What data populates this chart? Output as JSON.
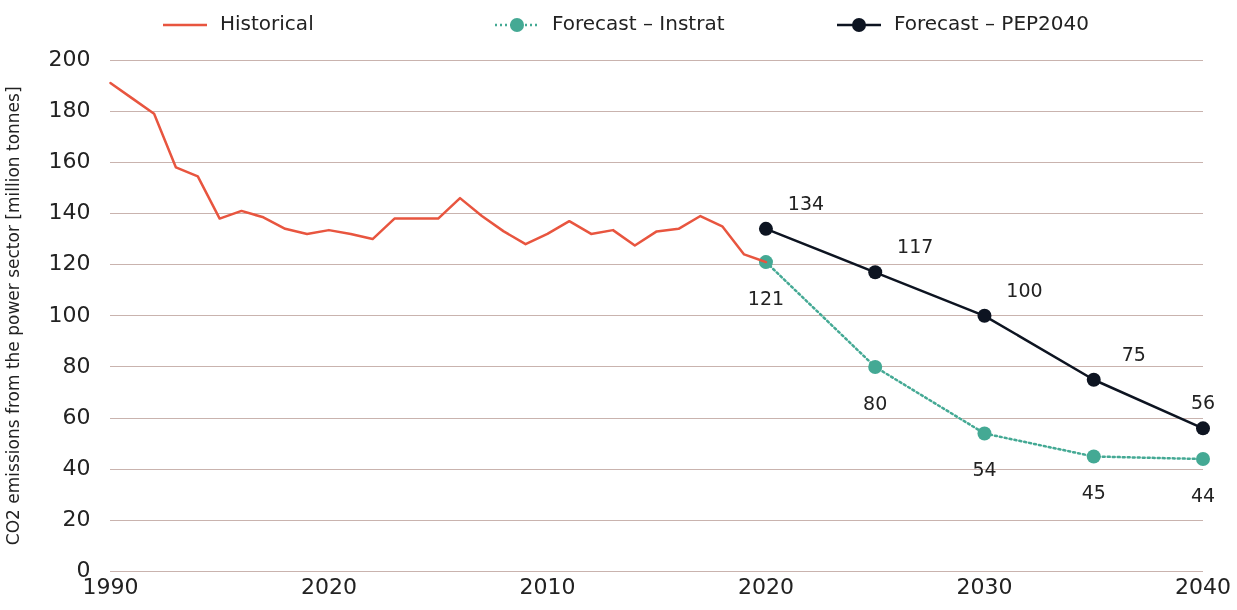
{
  "chart_data": {
    "type": "line",
    "ylabel": "CO2 emissions from the power sector [million tonnes]",
    "categories": [
      "1990",
      null,
      null,
      null,
      null,
      null,
      null,
      null,
      null,
      null,
      "2020",
      null,
      null,
      null,
      null,
      null,
      null,
      null,
      null,
      null,
      "2010",
      null,
      null,
      null,
      null,
      null,
      null,
      null,
      null,
      null,
      "2020",
      null,
      null,
      null,
      null,
      null,
      null,
      null,
      null,
      null,
      "2030",
      null,
      null,
      null,
      null,
      null,
      null,
      null,
      null,
      null,
      "2040"
    ],
    "ylim": [
      0,
      200
    ],
    "yticks": [
      0,
      20,
      40,
      60,
      80,
      100,
      120,
      140,
      160,
      180,
      200
    ],
    "grid": "y",
    "legend": "top",
    "series": [
      {
        "name": "Historical",
        "color": "#e8553f",
        "marker": "none",
        "line_style": "solid",
        "values": [
          191,
          185,
          179,
          158,
          154.5,
          138,
          141,
          138.5,
          134,
          132,
          133.5,
          132,
          130,
          138,
          138,
          138,
          146,
          139,
          133,
          128,
          132,
          137,
          132,
          133.5,
          127.5,
          133,
          134,
          139,
          135,
          124,
          121,
          null,
          null,
          null,
          null,
          null,
          null,
          null,
          null,
          null,
          null,
          null,
          null,
          null,
          null,
          null,
          null,
          null,
          null,
          null,
          null
        ]
      },
      {
        "name": "Forecast – Instrat",
        "color": "#44a994",
        "marker": "circle",
        "line_style": "dotted",
        "values": [
          null,
          null,
          null,
          null,
          null,
          null,
          null,
          null,
          null,
          null,
          null,
          null,
          null,
          null,
          null,
          null,
          null,
          null,
          null,
          null,
          null,
          null,
          null,
          null,
          null,
          null,
          null,
          null,
          null,
          null,
          121,
          null,
          null,
          null,
          null,
          80,
          null,
          null,
          null,
          null,
          54,
          null,
          null,
          null,
          null,
          45,
          null,
          null,
          null,
          null,
          44
        ],
        "value_labels": [
          null,
          null,
          null,
          null,
          null,
          null,
          null,
          null,
          null,
          null,
          null,
          null,
          null,
          null,
          null,
          null,
          null,
          null,
          null,
          null,
          null,
          null,
          null,
          null,
          null,
          null,
          null,
          null,
          null,
          null,
          "121",
          null,
          null,
          null,
          null,
          "80",
          null,
          null,
          null,
          null,
          "54",
          null,
          null,
          null,
          null,
          "45",
          null,
          null,
          null,
          null,
          "44"
        ]
      },
      {
        "name": "Forecast – PEP2040",
        "color": "#0d1421",
        "marker": "circle",
        "line_style": "solid",
        "values": [
          null,
          null,
          null,
          null,
          null,
          null,
          null,
          null,
          null,
          null,
          null,
          null,
          null,
          null,
          null,
          null,
          null,
          null,
          null,
          null,
          null,
          null,
          null,
          null,
          null,
          null,
          null,
          null,
          null,
          null,
          134,
          null,
          null,
          null,
          null,
          117,
          null,
          null,
          null,
          null,
          100,
          null,
          null,
          null,
          null,
          75,
          null,
          null,
          null,
          null,
          56
        ],
        "value_labels": [
          null,
          null,
          null,
          null,
          null,
          null,
          null,
          null,
          null,
          null,
          null,
          null,
          null,
          null,
          null,
          null,
          null,
          null,
          null,
          null,
          null,
          null,
          null,
          null,
          null,
          null,
          null,
          null,
          null,
          null,
          "134",
          null,
          null,
          null,
          null,
          "117",
          null,
          null,
          null,
          null,
          "100",
          null,
          null,
          null,
          null,
          "75",
          null,
          null,
          null,
          null,
          "56"
        ]
      }
    ]
  }
}
